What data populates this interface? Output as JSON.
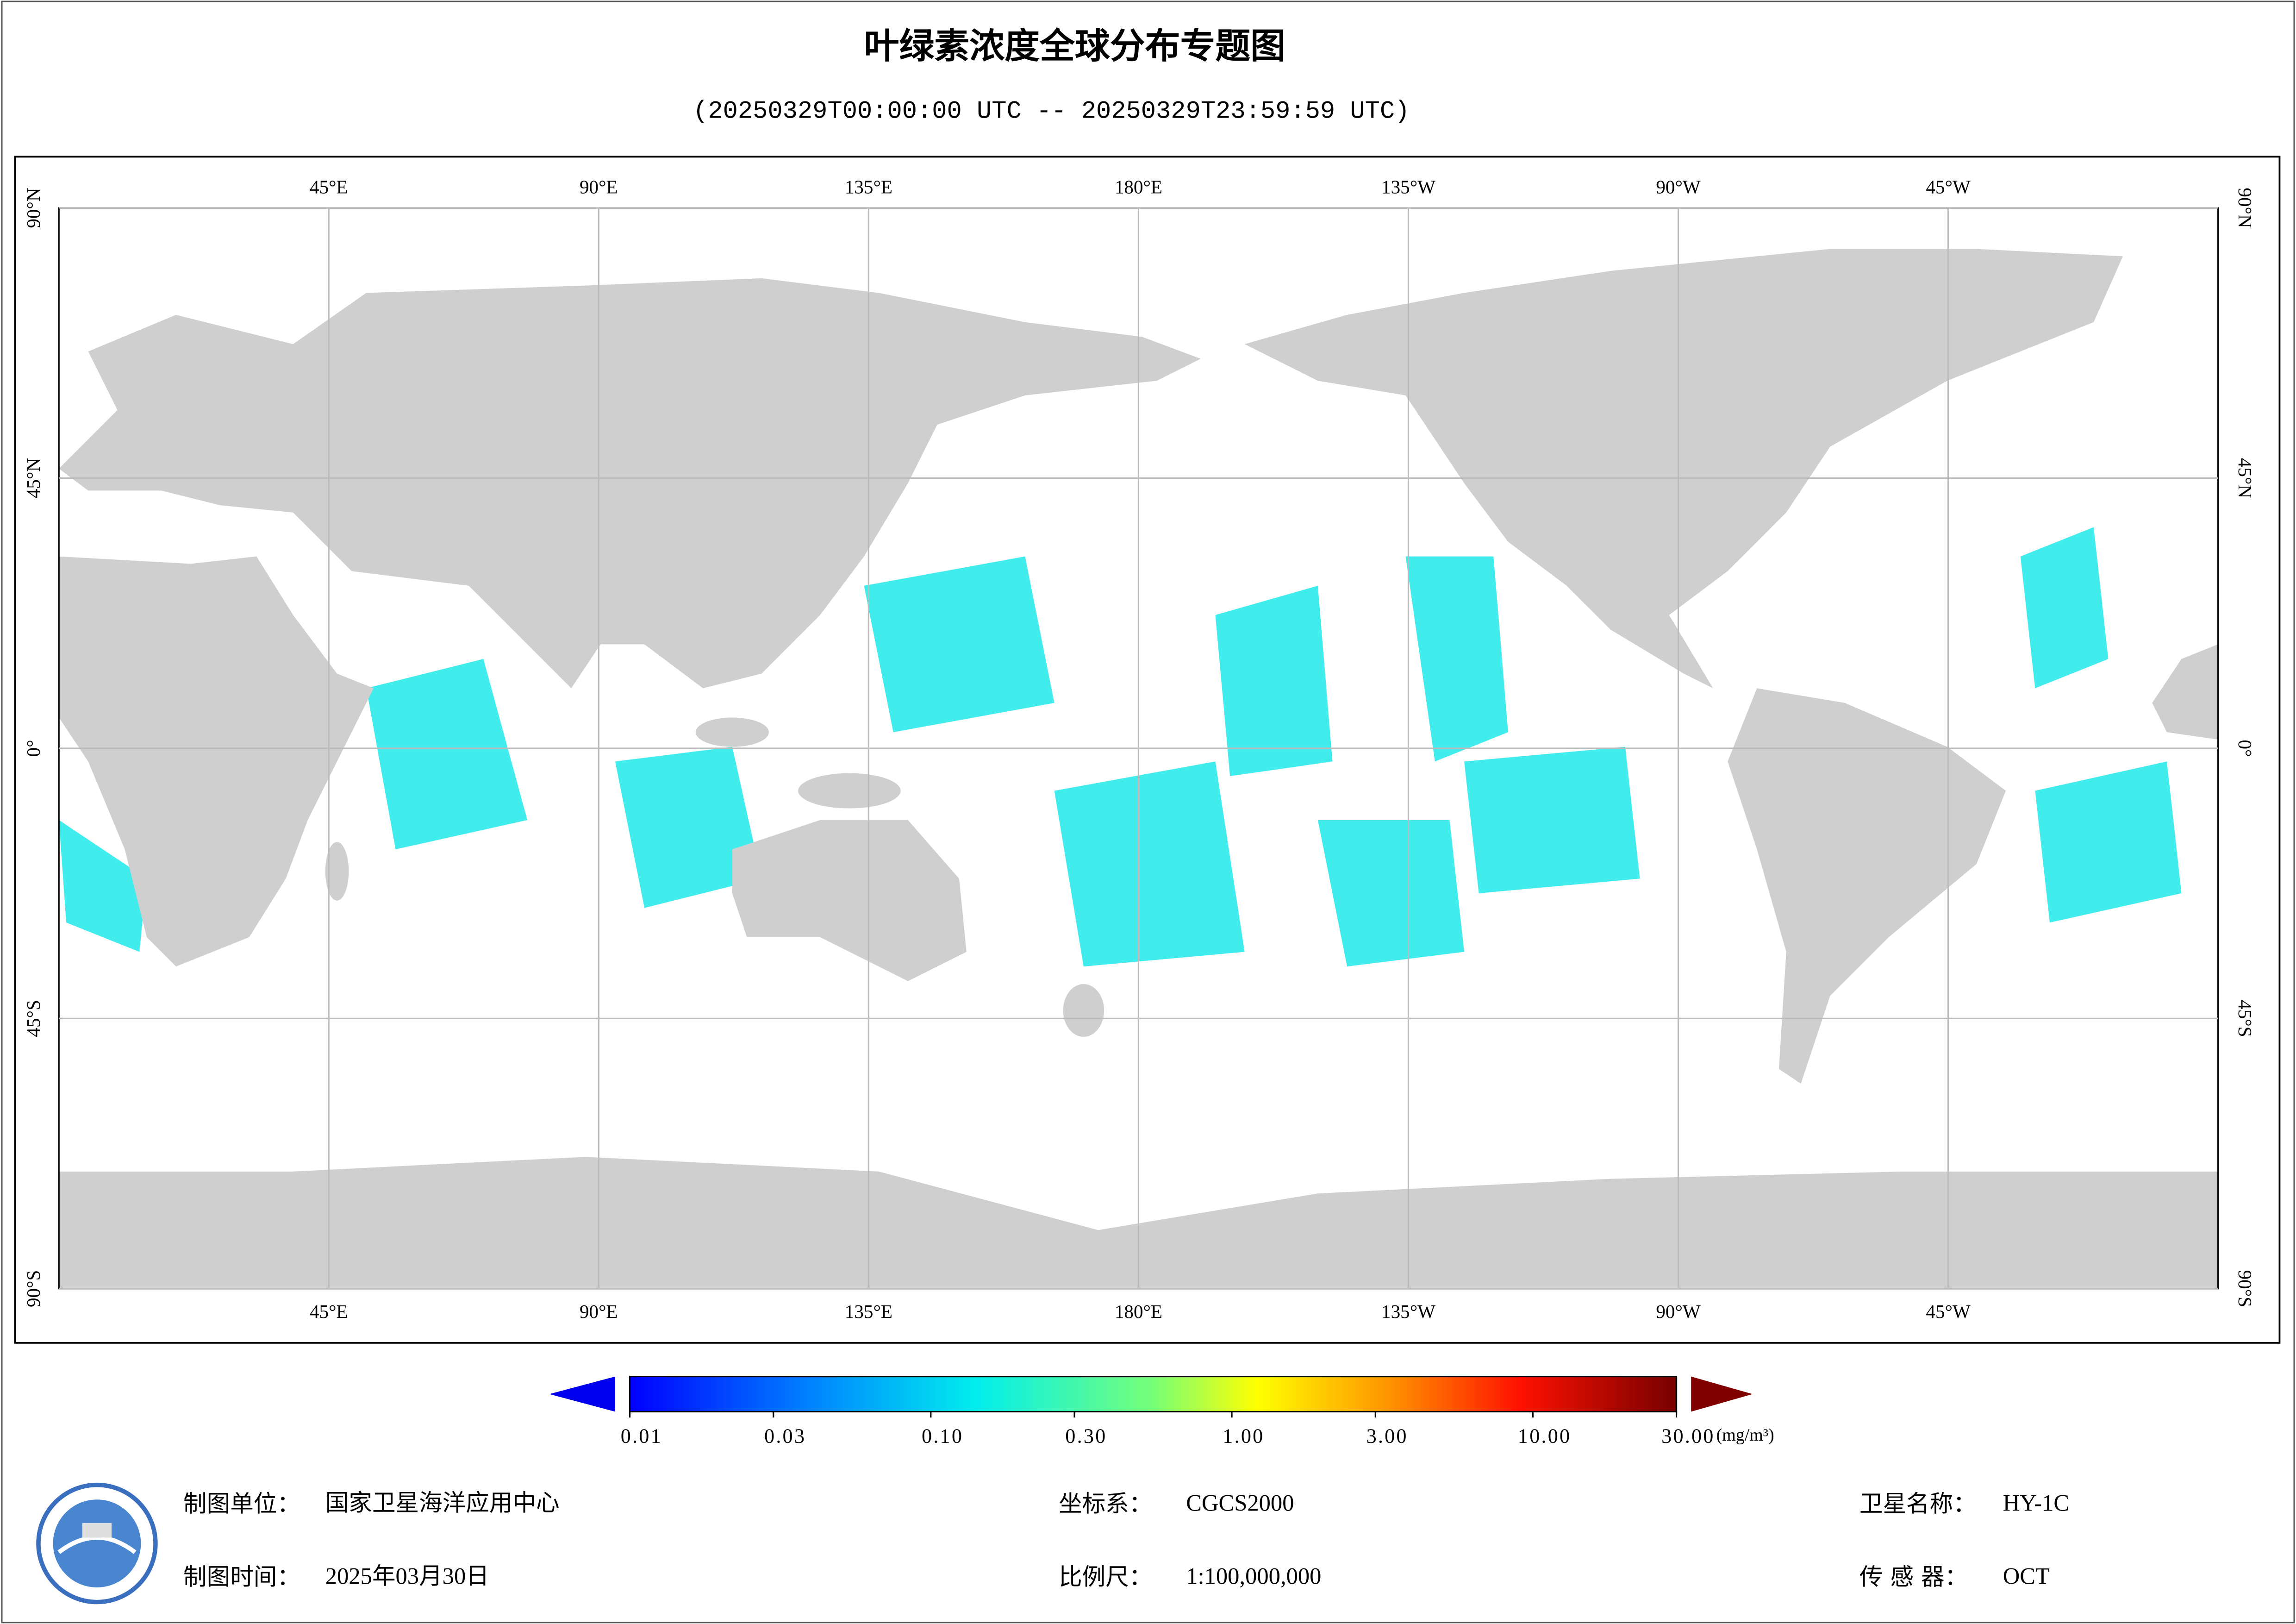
{
  "header": {
    "title": "叶绿素浓度全球分布专题图",
    "subtitle": "(20250329T00:00:00 UTC -- 20250329T23:59:59 UTC)"
  },
  "map": {
    "lonlim": [
      0,
      360
    ],
    "latlim": [
      -90,
      90
    ],
    "grid": true,
    "lon_ticks": [
      {
        "value": 45,
        "label": "45°E"
      },
      {
        "value": 90,
        "label": "90°E"
      },
      {
        "value": 135,
        "label": "135°E"
      },
      {
        "value": 180,
        "label": "180°E"
      },
      {
        "value": 225,
        "label": "135°W"
      },
      {
        "value": 270,
        "label": "90°W"
      },
      {
        "value": 315,
        "label": "45°W"
      }
    ],
    "lat_ticks": [
      {
        "value": 90,
        "label": "90°N"
      },
      {
        "value": 45,
        "label": "45°N"
      },
      {
        "value": 0,
        "label": "0°"
      },
      {
        "value": -45,
        "label": "45°S"
      },
      {
        "value": -90,
        "label": "90°S"
      }
    ]
  },
  "colorbar": {
    "scale": "log",
    "range": [
      0.01,
      30
    ],
    "ticks": [
      {
        "value": 0.01,
        "label": "0.01"
      },
      {
        "value": 0.03,
        "label": "0.03"
      },
      {
        "value": 0.1,
        "label": "0.10"
      },
      {
        "value": 0.3,
        "label": "0.30"
      },
      {
        "value": 1,
        "label": "1.00"
      },
      {
        "value": 3,
        "label": "3.00"
      },
      {
        "value": 10,
        "label": "10.00"
      },
      {
        "value": 30,
        "label": "30.00"
      }
    ],
    "unit": "(mg/m³)"
  },
  "footer": {
    "unit": {
      "label": "制图单位：",
      "value": "国家卫星海洋应用中心"
    },
    "date": {
      "label": "制图时间：",
      "value": "2025年03月30日"
    },
    "crs": {
      "label": "坐标系：",
      "value": "CGCS2000"
    },
    "scale": {
      "label": "比例尺：",
      "value": "1:100,000,000"
    },
    "satellite": {
      "label": "卫星名称：",
      "value": "HY-1C"
    },
    "sensor": {
      "label": "传 感 器：",
      "value": "OCT"
    }
  }
}
